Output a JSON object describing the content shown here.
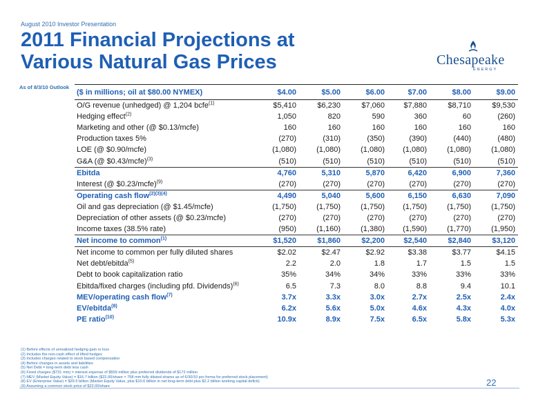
{
  "kicker": "August 2010 Investor Presentation",
  "title_line1": "2011 Financial Projections at",
  "title_line2": "Various Natural Gas Prices",
  "logo": {
    "name": "Chesapeake",
    "sub": "ENERGY"
  },
  "as_of": "As of 8/3/10 Outlook",
  "table": {
    "header": "($ in millions; oil at $80.00 NYMEX)",
    "columns": [
      "$4.00",
      "$5.00",
      "$6.00",
      "$7.00",
      "$8.00",
      "$9.00"
    ],
    "rows": [
      {
        "label": "O/G revenue (unhedged) @ 1,204 bcfe",
        "sup": "(1)",
        "values": [
          "$5,410",
          "$6,230",
          "$7,060",
          "$7,880",
          "$8,710",
          "$9,530"
        ]
      },
      {
        "label": "Hedging effect",
        "sup": "(2)",
        "values": [
          "1,050",
          "820",
          "590",
          "360",
          "60",
          "(260)"
        ]
      },
      {
        "label": "Marketing and other (@ $0.13/mcfe)",
        "sup": "",
        "values": [
          "160",
          "160",
          "160",
          "160",
          "160",
          "160"
        ]
      },
      {
        "label": "Production taxes 5%",
        "sup": "",
        "values": [
          "(270)",
          "(310)",
          "(350)",
          "(390)",
          "(440)",
          "(480)"
        ]
      },
      {
        "label": "LOE (@ $0.90/mcfe)",
        "sup": "",
        "values": [
          "(1,080)",
          "(1,080)",
          "(1,080)",
          "(1,080)",
          "(1,080)",
          "(1,080)"
        ]
      },
      {
        "label": "G&A (@ $0.43/mcfe)",
        "sup": "(3)",
        "values": [
          "(510)",
          "(510)",
          "(510)",
          "(510)",
          "(510)",
          "(510)"
        ]
      },
      {
        "label": "Ebitda",
        "sup": "",
        "values": [
          "4,760",
          "5,310",
          "5,870",
          "6,420",
          "6,900",
          "7,360"
        ]
      },
      {
        "label": "Interest (@ $0.23/mcfe)",
        "sup": "(9)",
        "values": [
          "(270)",
          "(270)",
          "(270)",
          "(270)",
          "(270)",
          "(270)"
        ]
      },
      {
        "label": "Operating cash flow",
        "sup": "(2)(3)(4)",
        "values": [
          "4,490",
          "5,040",
          "5,600",
          "6,150",
          "6,630",
          "7,090"
        ]
      },
      {
        "label": "Oil and gas depreciation (@ $1.45/mcfe)",
        "sup": "",
        "values": [
          "(1,750)",
          "(1,750)",
          "(1,750)",
          "(1,750)",
          "(1,750)",
          "(1,750)"
        ]
      },
      {
        "label": "Depreciation of other assets (@ $0.23/mcfe)",
        "sup": "",
        "values": [
          "(270)",
          "(270)",
          "(270)",
          "(270)",
          "(270)",
          "(270)"
        ]
      },
      {
        "label": "Income taxes (38.5% rate)",
        "sup": "",
        "values": [
          "(950)",
          "(1,160)",
          "(1,380)",
          "(1,590)",
          "(1,770)",
          "(1,950)"
        ]
      },
      {
        "label": "Net income to common",
        "sup": "(1)",
        "values": [
          "$1,520",
          "$1,860",
          "$2,200",
          "$2,540",
          "$2,840",
          "$3,120"
        ]
      },
      {
        "label": "Net income to common per fully diluted shares",
        "sup": "",
        "values": [
          "$2.02",
          "$2.47",
          "$2.92",
          "$3.38",
          "$3.77",
          "$4.15"
        ]
      },
      {
        "label": "Net debt/ebitda",
        "sup": "(5)",
        "values": [
          "2.2",
          "2.0",
          "1.8",
          "1.7",
          "1.5",
          "1.5"
        ]
      },
      {
        "label": "Debt to book capitalization ratio",
        "sup": "",
        "values": [
          "35%",
          "34%",
          "34%",
          "33%",
          "33%",
          "33%"
        ]
      },
      {
        "label": "Ebitda/fixed charges (including pfd. Dividends)",
        "sup": "(6)",
        "values": [
          "6.5",
          "7.3",
          "8.0",
          "8.8",
          "9.4",
          "10.1"
        ]
      },
      {
        "label": "MEV/operating cash flow",
        "sup": "(7)",
        "values": [
          "3.7x",
          "3.3x",
          "3.0x",
          "2.7x",
          "2.5x",
          "2.4x"
        ]
      },
      {
        "label": "EV/ebitda",
        "sup": "(8)",
        "values": [
          "6.2x",
          "5.6x",
          "5.0x",
          "4.6x",
          "4.3x",
          "4.0x"
        ]
      },
      {
        "label": "PE ratio",
        "sup": "(10)",
        "values": [
          "10.9x",
          "8.9x",
          "7.5x",
          "6.5x",
          "5.8x",
          "5.3x"
        ]
      }
    ]
  },
  "footnotes": [
    "(1) Before effects of unrealized hedging gain or loss",
    "(2) Includes the non-cash effect of lifted hedges",
    "(3) Includes charges related to stock based compensation",
    "(4) Before changes in assets and liabilities",
    "(5) Net Debt = long-term debt less cash",
    "(6) Fixed charges ($731 mm) = interest expense of $559 million plus preferred dividends of $172 million",
    "(7) MEV (Market Equity Value) = $16.7 billion ($22.00/share × 758 mm fully diluted shares as of 6/30/10 pro forma for preferred stock placement)",
    "(8) EV (Enterprise Value) = $29.5 billion (Market Equity Value, plus $10.6 billion in net long-term debt plus $2.2 billion working capital deficit)",
    "(9) Assuming a common stock price of $22.00/share"
  ],
  "page_number": "22",
  "colors": {
    "brand_blue": "#1f5fb4",
    "footnote_blue": "#2f6fb0"
  }
}
